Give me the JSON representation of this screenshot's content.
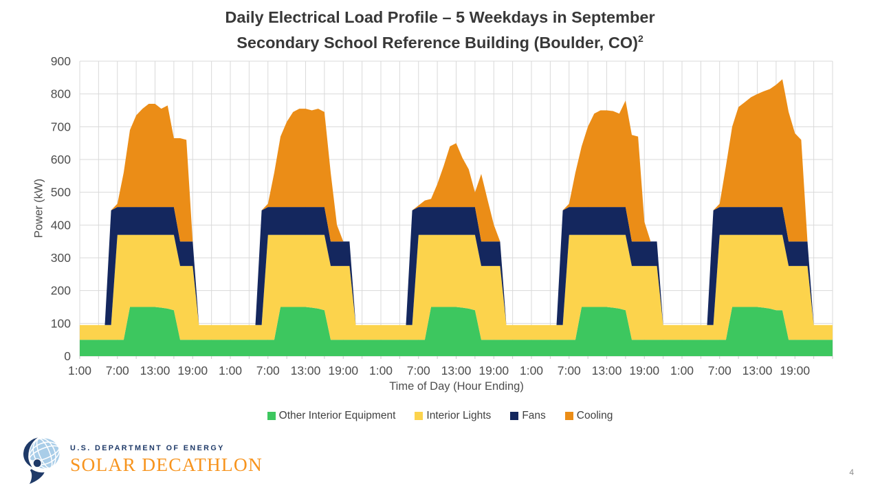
{
  "page": {
    "background": "#FFFFFF",
    "page_number": "4"
  },
  "logo": {
    "line1": "U.S. DEPARTMENT OF ENERGY",
    "line2": "SOLAR DECATHLON",
    "navy": "#1F3A68",
    "orange": "#F7941E",
    "globe_blue": "#A9CDE8"
  },
  "chart_data": {
    "type": "area",
    "stacked": true,
    "title_line1": "Daily Electrical Load Profile – 5 Weekdays in September",
    "title_line2": "Secondary School Reference Building (Boulder, CO)",
    "title_superscript": "2",
    "xlabel": "Time of Day (Hour Ending)",
    "ylabel": "Power (kW)",
    "ylim": [
      0,
      900
    ],
    "ytick_step": 100,
    "hours_per_day": 24,
    "num_days": 5,
    "grid_on": true,
    "grid_color": "#D9D9D9",
    "tick_color": "#4D4D4D",
    "legend_position": "bottom",
    "x_tick_hours": [
      1,
      7,
      13,
      19,
      25,
      31,
      37,
      43,
      49,
      55,
      61,
      67,
      73,
      79,
      85,
      91,
      97,
      103,
      109,
      115
    ],
    "x_tick_labels": [
      "1:00",
      "7:00",
      "13:00",
      "19:00",
      "1:00",
      "7:00",
      "13:00",
      "19:00",
      "1:00",
      "7:00",
      "13:00",
      "19:00",
      "1:00",
      "7:00",
      "13:00",
      "19:00",
      "1:00",
      "7:00",
      "13:00",
      "19:00"
    ],
    "series": [
      {
        "name": "Other Interior Equipment",
        "color": "#3DC75F",
        "days": [
          [
            50,
            50,
            50,
            50,
            50,
            50,
            50,
            50,
            150,
            150,
            150,
            150,
            150,
            148,
            145,
            140,
            50,
            50,
            50,
            50,
            50,
            50,
            50,
            50
          ],
          [
            50,
            50,
            50,
            50,
            50,
            50,
            50,
            50,
            150,
            150,
            150,
            150,
            150,
            148,
            145,
            140,
            50,
            50,
            50,
            50,
            50,
            50,
            50,
            50
          ],
          [
            50,
            50,
            50,
            50,
            50,
            50,
            50,
            50,
            150,
            150,
            150,
            150,
            150,
            148,
            145,
            140,
            50,
            50,
            50,
            50,
            50,
            50,
            50,
            50
          ],
          [
            50,
            50,
            50,
            50,
            50,
            50,
            50,
            50,
            150,
            150,
            150,
            150,
            150,
            148,
            145,
            140,
            50,
            50,
            50,
            50,
            50,
            50,
            50,
            50
          ],
          [
            50,
            50,
            50,
            50,
            50,
            50,
            50,
            50,
            150,
            150,
            150,
            150,
            150,
            148,
            145,
            140,
            140,
            50,
            50,
            50,
            50,
            50,
            50,
            50
          ]
        ]
      },
      {
        "name": "Interior Lights",
        "color": "#FCD34C",
        "days": [
          [
            45,
            45,
            45,
            45,
            45,
            45,
            320,
            320,
            220,
            220,
            220,
            220,
            220,
            222,
            225,
            230,
            225,
            225,
            225,
            45,
            45,
            45,
            45,
            45
          ],
          [
            45,
            45,
            45,
            45,
            45,
            45,
            320,
            320,
            220,
            220,
            220,
            220,
            220,
            222,
            225,
            230,
            225,
            225,
            225,
            225,
            45,
            45,
            45,
            45
          ],
          [
            45,
            45,
            45,
            45,
            45,
            45,
            320,
            320,
            220,
            220,
            220,
            220,
            220,
            222,
            225,
            230,
            225,
            225,
            225,
            225,
            45,
            45,
            45,
            45
          ],
          [
            45,
            45,
            45,
            45,
            45,
            45,
            320,
            320,
            220,
            220,
            220,
            220,
            220,
            222,
            225,
            230,
            225,
            225,
            225,
            225,
            225,
            45,
            45,
            45
          ],
          [
            45,
            45,
            45,
            45,
            45,
            45,
            320,
            320,
            220,
            220,
            220,
            220,
            220,
            222,
            225,
            230,
            230,
            225,
            225,
            225,
            225,
            45,
            45,
            45
          ]
        ]
      },
      {
        "name": "Fans",
        "color": "#14275E",
        "days": [
          [
            0,
            0,
            0,
            0,
            0,
            350,
            85,
            85,
            85,
            85,
            85,
            85,
            85,
            85,
            85,
            85,
            75,
            75,
            75,
            0,
            0,
            0,
            0,
            0
          ],
          [
            0,
            0,
            0,
            0,
            0,
            350,
            85,
            85,
            85,
            85,
            85,
            85,
            85,
            85,
            85,
            85,
            75,
            75,
            75,
            75,
            0,
            0,
            0,
            0
          ],
          [
            0,
            0,
            0,
            0,
            0,
            350,
            85,
            85,
            85,
            85,
            85,
            85,
            85,
            85,
            85,
            85,
            75,
            75,
            75,
            75,
            0,
            0,
            0,
            0
          ],
          [
            0,
            0,
            0,
            0,
            0,
            350,
            85,
            85,
            85,
            85,
            85,
            85,
            85,
            85,
            85,
            85,
            75,
            75,
            75,
            75,
            75,
            0,
            0,
            0
          ],
          [
            0,
            0,
            0,
            0,
            0,
            350,
            85,
            85,
            85,
            85,
            85,
            85,
            85,
            85,
            85,
            85,
            85,
            75,
            75,
            75,
            75,
            0,
            0,
            0
          ]
        ]
      },
      {
        "name": "Cooling",
        "color": "#EB8D17",
        "days": [
          [
            0,
            0,
            0,
            0,
            0,
            0,
            10,
            105,
            235,
            280,
            300,
            315,
            315,
            300,
            310,
            210,
            315,
            310,
            0,
            0,
            0,
            0,
            0,
            0
          ],
          [
            0,
            0,
            0,
            0,
            0,
            0,
            10,
            105,
            215,
            260,
            290,
            300,
            300,
            295,
            300,
            290,
            210,
            50,
            0,
            0,
            0,
            0,
            0,
            0
          ],
          [
            0,
            0,
            0,
            0,
            0,
            0,
            5,
            20,
            25,
            70,
            125,
            185,
            195,
            150,
            115,
            45,
            206,
            128,
            51,
            0,
            0,
            0,
            0,
            0
          ],
          [
            0,
            0,
            0,
            0,
            0,
            0,
            10,
            105,
            185,
            245,
            285,
            295,
            295,
            293,
            285,
            325,
            325,
            320,
            60,
            0,
            0,
            0,
            0,
            0
          ],
          [
            0,
            0,
            0,
            0,
            0,
            0,
            10,
            125,
            245,
            305,
            320,
            335,
            345,
            353,
            360,
            373,
            390,
            395,
            330,
            310,
            0,
            0,
            0,
            0
          ]
        ]
      }
    ]
  }
}
